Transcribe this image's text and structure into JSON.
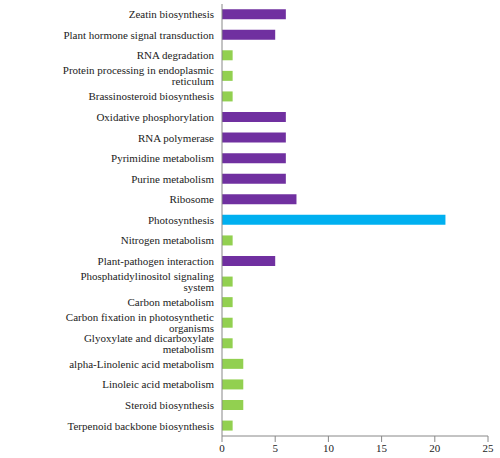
{
  "chart_data": {
    "type": "bar",
    "orientation": "horizontal",
    "categories": [
      "Zeatin biosynthesis",
      "Plant hormone signal transduction",
      "RNA degradation",
      "Protein processing in endoplasmic reticulum",
      "Brassinosteroid biosynthesis",
      "Oxidative phosphorylation",
      "RNA polymerase",
      "Pyrimidine metabolism",
      "Purine metabolism",
      "Ribosome",
      "Photosynthesis",
      "Nitrogen metabolism",
      "Plant-pathogen interaction",
      "Phosphatidylinositol signaling system",
      "Carbon metabolism",
      "Carbon fixation in photosynthetic organisms",
      "Glyoxylate and dicarboxylate metabolism",
      "alpha-Linolenic acid metabolism",
      "Linoleic acid metabolism",
      "Steroid biosynthesis",
      "Terpenoid backbone biosynthesis"
    ],
    "values": [
      6,
      5,
      1,
      1,
      1,
      6,
      6,
      6,
      6,
      7,
      21,
      1,
      5,
      1,
      1,
      1,
      1,
      2,
      2,
      2,
      1
    ],
    "colors": [
      "#7030a0",
      "#7030a0",
      "#92d050",
      "#92d050",
      "#92d050",
      "#7030a0",
      "#7030a0",
      "#7030a0",
      "#7030a0",
      "#7030a0",
      "#00b0f0",
      "#92d050",
      "#7030a0",
      "#92d050",
      "#92d050",
      "#92d050",
      "#92d050",
      "#92d050",
      "#92d050",
      "#92d050",
      "#92d050"
    ],
    "xlim": [
      0,
      25
    ],
    "xticks": [
      0,
      5,
      10,
      15,
      20,
      25
    ],
    "grid": false
  }
}
